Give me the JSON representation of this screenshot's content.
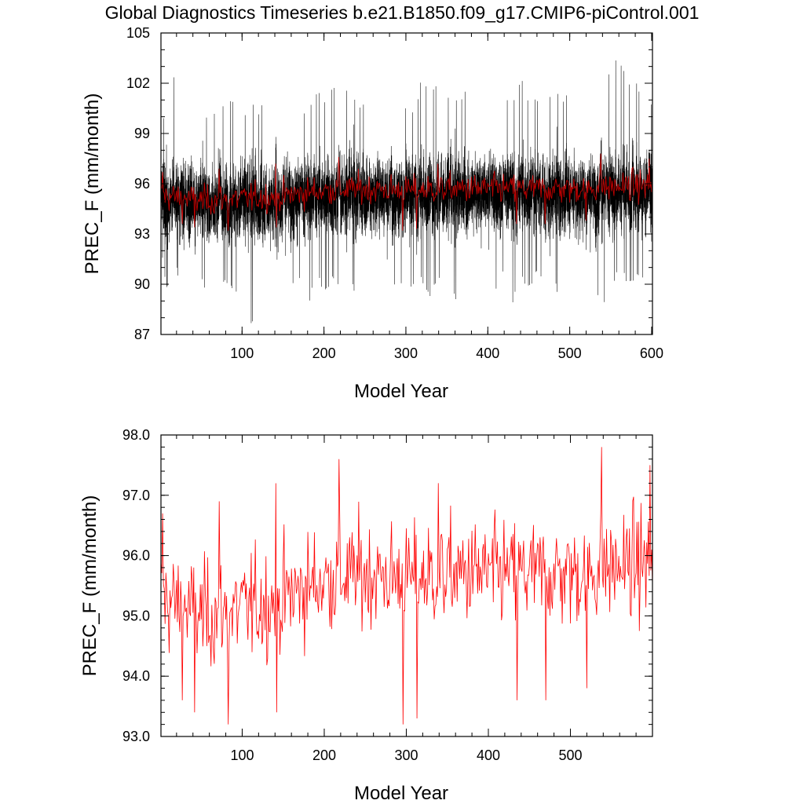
{
  "title": "Global Diagnostics Timeseries b.e21.B1850.f09_g17.CMIP6-piControl.001",
  "chart_data": [
    {
      "type": "line",
      "xlabel": "Model Year",
      "ylabel": "PREC_F (mm/month)",
      "xlim": [
        1,
        601
      ],
      "ylim": [
        87,
        105
      ],
      "xticks": [
        100,
        200,
        300,
        400,
        500,
        600
      ],
      "xtick_labels": [
        "100",
        "200",
        "300",
        "400",
        "500",
        "600"
      ],
      "yticks": [
        87,
        90,
        93,
        96,
        99,
        102,
        105
      ],
      "ytick_labels": [
        "87",
        "90",
        "93",
        "96",
        "99",
        "102",
        "105"
      ],
      "grid": false,
      "series": [
        {
          "kind": "monthly",
          "color": "#000000",
          "envelope_years": [
            1,
            10,
            20,
            30,
            40,
            50,
            60,
            70,
            80,
            90,
            100,
            110,
            120,
            130,
            140,
            150,
            160,
            170,
            180,
            190,
            200,
            210,
            220,
            230,
            240,
            250,
            260,
            270,
            280,
            290,
            300,
            310,
            320,
            330,
            340,
            350,
            360,
            370,
            380,
            390,
            400,
            410,
            420,
            430,
            440,
            450,
            460,
            470,
            480,
            490,
            500,
            510,
            520,
            530,
            540,
            550,
            560,
            570,
            580,
            590,
            600
          ],
          "envelope_max": [
            99.5,
            101.2,
            103.2,
            101.0,
            100.8,
            101.5,
            99.8,
            100.5,
            101.0,
            101.5,
            100.0,
            101.0,
            100.5,
            101.2,
            100.8,
            100.5,
            101.5,
            101.0,
            100.5,
            101.8,
            101.0,
            102.0,
            103.0,
            101.5,
            101.0,
            100.8,
            101.5,
            101.0,
            101.2,
            101.5,
            101.0,
            100.5,
            102.5,
            101.5,
            102.8,
            101.5,
            101.0,
            101.5,
            102.0,
            101.0,
            101.5,
            102.0,
            101.8,
            101.0,
            102.5,
            101.0,
            101.5,
            101.0,
            101.8,
            101.2,
            101.5,
            102.0,
            102.8,
            101.5,
            102.5,
            103.2,
            104.0,
            102.0,
            102.5,
            101.5,
            101.0
          ],
          "envelope_min": [
            92.0,
            89.0,
            90.5,
            89.8,
            89.5,
            90.0,
            88.8,
            89.5,
            90.2,
            89.0,
            89.0,
            87.0,
            89.8,
            88.5,
            89.5,
            89.0,
            89.8,
            90.0,
            88.3,
            90.2,
            89.5,
            90.0,
            89.2,
            89.8,
            89.5,
            88.5,
            90.5,
            90.0,
            90.2,
            89.5,
            89.8,
            89.5,
            90.0,
            89.2,
            89.8,
            90.0,
            89.0,
            90.2,
            90.5,
            89.0,
            90.0,
            89.5,
            90.5,
            88.6,
            90.0,
            89.8,
            90.3,
            89.5,
            90.0,
            89.0,
            89.3,
            90.0,
            89.5,
            89.8,
            88.2,
            89.5,
            90.5,
            90.0,
            90.2,
            89.8,
            90.5
          ],
          "central_min": 93.5,
          "central_max": 97.0
        },
        {
          "kind": "annual",
          "color": "#c00000",
          "anchor_years": [
            1,
            50,
            100,
            150,
            200,
            250,
            300,
            350,
            400,
            450,
            500,
            550,
            600
          ],
          "anchor_mean": [
            95.3,
            95.0,
            95.1,
            95.3,
            95.6,
            95.7,
            95.6,
            95.7,
            95.7,
            95.7,
            95.7,
            95.8,
            95.9
          ]
        }
      ]
    },
    {
      "type": "line",
      "xlabel": "Model Year",
      "ylabel": "PREC_F (mm/month)",
      "xlim": [
        1,
        600
      ],
      "ylim": [
        93.0,
        98.0
      ],
      "xticks": [
        100,
        200,
        300,
        400,
        500
      ],
      "xtick_labels": [
        "100",
        "200",
        "300",
        "400",
        "500"
      ],
      "yticks": [
        93.0,
        94.0,
        95.0,
        96.0,
        97.0,
        98.0
      ],
      "ytick_labels": [
        "93.0",
        "94.0",
        "95.0",
        "96.0",
        "97.0",
        "98.0"
      ],
      "grid": false,
      "series": [
        {
          "kind": "annual",
          "color": "#ff0000",
          "anchor_years": [
            1,
            50,
            100,
            150,
            200,
            250,
            300,
            350,
            400,
            450,
            500,
            550,
            600
          ],
          "anchor_mean": [
            95.3,
            95.0,
            95.1,
            95.3,
            95.6,
            95.7,
            95.6,
            95.7,
            95.7,
            95.7,
            95.7,
            95.8,
            95.9
          ],
          "extremes": [
            {
              "year": 3,
              "value": 96.7
            },
            {
              "year": 27,
              "value": 93.6
            },
            {
              "year": 42,
              "value": 93.4
            },
            {
              "year": 72,
              "value": 96.9
            },
            {
              "year": 83,
              "value": 93.2
            },
            {
              "year": 141,
              "value": 97.2
            },
            {
              "year": 142,
              "value": 93.4
            },
            {
              "year": 218,
              "value": 97.6
            },
            {
              "year": 296,
              "value": 93.2
            },
            {
              "year": 313,
              "value": 93.3
            },
            {
              "year": 339,
              "value": 97.2
            },
            {
              "year": 435,
              "value": 93.6
            },
            {
              "year": 470,
              "value": 93.6
            },
            {
              "year": 520,
              "value": 93.8
            },
            {
              "year": 538,
              "value": 97.8
            },
            {
              "year": 597,
              "value": 97.5
            }
          ]
        }
      ]
    }
  ]
}
